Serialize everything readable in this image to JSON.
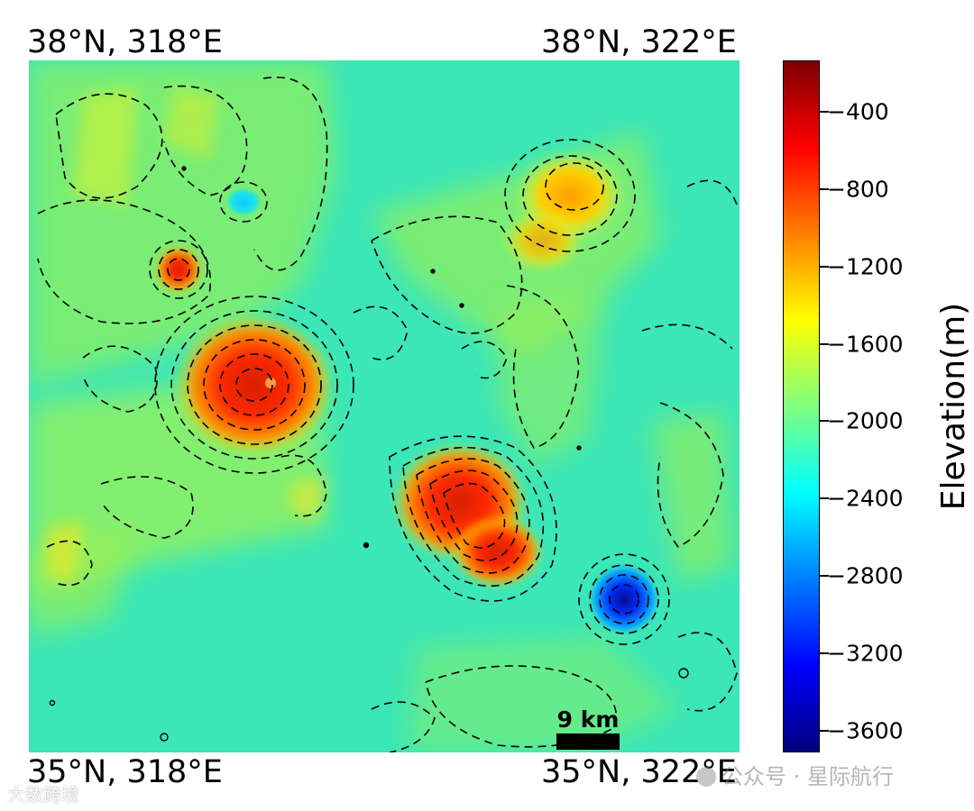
{
  "corners": {
    "top_left": "38°N, 318°E",
    "top_right": "38°N, 322°E",
    "bottom_left": "35°N, 318°E",
    "bottom_right": "35°N, 322°E"
  },
  "scale_bar": {
    "label": "9 km"
  },
  "colorbar": {
    "title": "Elevation(m)",
    "ticks": [
      "−400",
      "−800",
      "−1200",
      "−1600",
      "−2000",
      "−2400",
      "−2800",
      "−3200",
      "−3600"
    ],
    "range": [
      -3800,
      -150
    ],
    "colors": [
      "#00007f",
      "#0000ff",
      "#007fff",
      "#00ffff",
      "#7fff7f",
      "#ffff00",
      "#ff7f00",
      "#ff0000",
      "#7f0000"
    ]
  },
  "map": {
    "background_color": "#3be6b7",
    "features": [
      "elevation-high-central-left",
      "elevation-high-central-right",
      "elevation-high-upper-right",
      "elevation-high-small-upper-left",
      "crater-depression-blue-lower-right",
      "crater-depression-cyan-upper-left"
    ]
  },
  "watermarks": {
    "left": "大数跨境",
    "right": "公众号 · 星际航行"
  }
}
